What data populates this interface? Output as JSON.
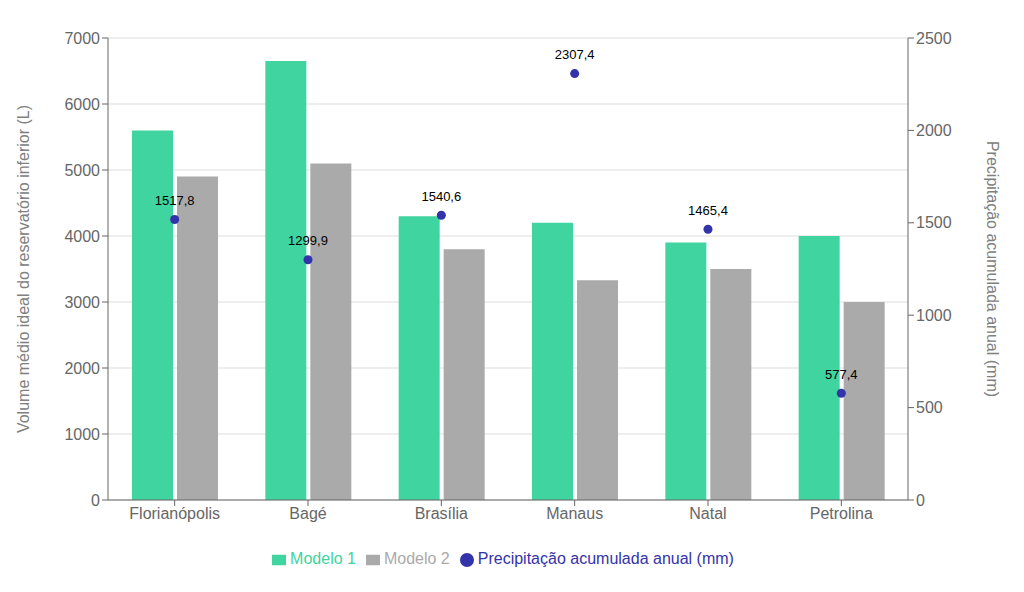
{
  "chart_data": {
    "type": "bar",
    "categories": [
      "Florianópolis",
      "Bagé",
      "Brasília",
      "Manaus",
      "Natal",
      "Petrolina"
    ],
    "series": [
      {
        "name": "Modelo 1",
        "color": "#40d4a0",
        "values": [
          5600,
          6650,
          4300,
          4200,
          3900,
          4000
        ]
      },
      {
        "name": "Modelo 2",
        "color": "#aaaaaa",
        "values": [
          4900,
          5100,
          3800,
          3330,
          3500,
          3000
        ]
      },
      {
        "name": "Precipitação acumulada anual (mm)",
        "type": "scatter",
        "axis": "y2",
        "color": "#3333aa",
        "marker": "circle",
        "values": [
          1517.8,
          1299.9,
          1540.6,
          2307.4,
          1465.4,
          577.4
        ],
        "value_labels": [
          "1517,8",
          "1299,9",
          "1540,6",
          "2307,4",
          "1465,4",
          "577,4"
        ],
        "data_labels": true
      }
    ],
    "ylabel": "Volume médio ideal do reservatório inferior (L)",
    "y2label": "Precipitação acumulada anual (mm)",
    "ylim": [
      0,
      7000
    ],
    "yticks": [
      0,
      1000,
      2000,
      3000,
      4000,
      5000,
      6000,
      7000
    ],
    "y2lim": [
      0,
      2500
    ],
    "y2ticks": [
      0,
      500,
      1000,
      1500,
      2000,
      2500
    ],
    "grid": true,
    "legend": "bottom"
  }
}
